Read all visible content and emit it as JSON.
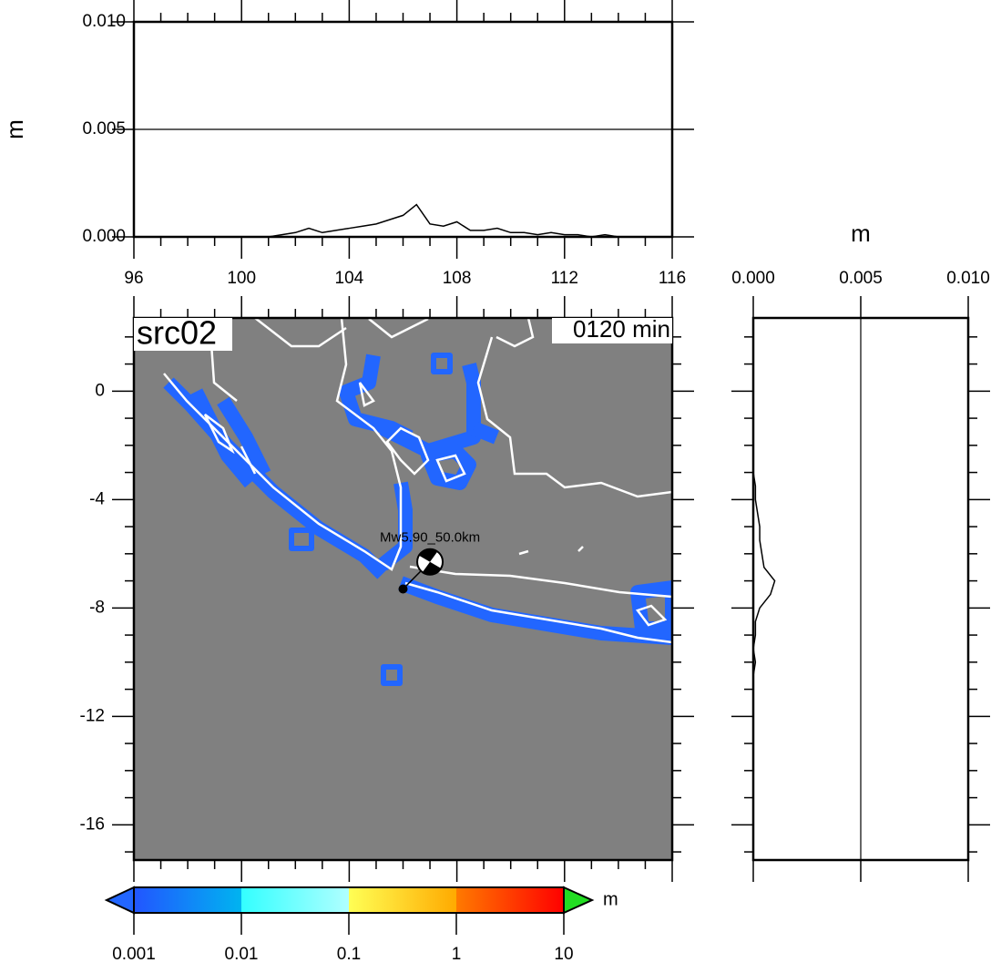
{
  "chart_data": [
    {
      "type": "line",
      "orientation": "horizontal",
      "y_label": "m",
      "x": [
        100,
        100.5,
        101,
        101.5,
        102,
        102.5,
        103,
        103.5,
        104,
        104.5,
        105,
        105.5,
        106,
        106.5,
        107,
        107.5,
        108,
        108.5,
        109,
        109.5,
        110,
        110.5,
        111,
        111.5,
        112,
        112.5,
        113,
        113.5,
        114,
        114.5,
        115,
        115.5,
        116
      ],
      "series": [
        {
          "color": "#000000",
          "values": [
            0,
            0,
            0,
            0.0001,
            0.0002,
            0.0004,
            0.0002,
            0.0003,
            0.0004,
            0.0005,
            0.0006,
            0.0008,
            0.001,
            0.0015,
            0.0006,
            0.0005,
            0.0007,
            0.0003,
            0.0003,
            0.0004,
            0.0002,
            0.0002,
            0.0001,
            0.0002,
            0.0001,
            0.0001,
            0,
            0.0001,
            0,
            0,
            0,
            0,
            0
          ]
        }
      ],
      "xlim": [
        96,
        116
      ],
      "xticks": [
        96,
        100,
        104,
        108,
        112,
        116
      ],
      "xminor": [
        97,
        98,
        99,
        101,
        102,
        103,
        105,
        106,
        107,
        109,
        110,
        111,
        113,
        114,
        115
      ],
      "ylim": [
        0,
        0.01
      ],
      "yticks": [
        {
          "value": 0,
          "label": "0.000"
        },
        {
          "value": 0.005,
          "label": "0.005"
        },
        {
          "value": 0.01,
          "label": "0.010"
        }
      ],
      "grid": true
    },
    {
      "type": "map",
      "title": "src02",
      "time_label": "0120 min",
      "event_label": "Mw5.90_50.0km",
      "xlim": [
        96,
        116
      ],
      "xticks": [
        96,
        100,
        104,
        108,
        112,
        116
      ],
      "xminor": [
        97,
        98,
        99,
        101,
        102,
        103,
        105,
        106,
        107,
        109,
        110,
        111,
        113,
        114,
        115
      ],
      "ylim": [
        -17.3,
        2.7
      ],
      "yticks": [
        -16,
        -12,
        -8,
        -4,
        0
      ],
      "yminor": [
        -17,
        -15,
        -14,
        -13,
        -11,
        -10,
        -9,
        -7,
        -6,
        -5,
        -3,
        -2,
        -1,
        1,
        2
      ],
      "epicenter": [
        106.0,
        -7.3
      ],
      "mechanism": [
        107.0,
        -6.3
      ],
      "sea_color": "#808080",
      "coast_color": "#ffffff",
      "wave_color": "#2266ff"
    },
    {
      "type": "line",
      "orientation": "vertical",
      "x_label": "m",
      "y": [
        -3,
        -3.5,
        -4,
        -4.5,
        -5,
        -5.5,
        -6,
        -6.5,
        -7,
        -7.5,
        -8,
        -8.5,
        -9,
        -9.5,
        -10,
        -10.5
      ],
      "series": [
        {
          "color": "#000000",
          "values": [
            0,
            0.0001,
            0.0001,
            0.0002,
            0.0003,
            0.0003,
            0.0004,
            0.0005,
            0.001,
            0.0008,
            0.0003,
            0.0001,
            0.0001,
            0,
            0.0001,
            0
          ]
        }
      ],
      "xlim": [
        0,
        0.01
      ],
      "xticks": [
        {
          "value": 0,
          "label": "0.000"
        },
        {
          "value": 0.005,
          "label": "0.005"
        },
        {
          "value": 0.01,
          "label": "0.010"
        }
      ],
      "ylim": [
        -17.3,
        2.7
      ],
      "yticks": [
        -16,
        -12,
        -8,
        -4,
        0
      ],
      "yminor": [
        -17,
        -15,
        -14,
        -13,
        -11,
        -10,
        -9,
        -7,
        -6,
        -5,
        -3,
        -2,
        -1,
        1,
        2
      ],
      "grid": true
    },
    {
      "type": "colorbar",
      "log": true,
      "lim": [
        0.001,
        10
      ],
      "ticks": [
        0.001,
        0.01,
        0.1,
        1,
        10
      ],
      "label": "m",
      "colors": [
        [
          "#2255ff",
          "#00b4f0"
        ],
        [
          "#33ffff",
          "#b0ffff"
        ],
        [
          "#ffff55",
          "#ffaa00"
        ],
        [
          "#ff7a00",
          "#ff0000"
        ]
      ],
      "under_color": "#2266ff",
      "over_color": "#22dd22"
    }
  ]
}
